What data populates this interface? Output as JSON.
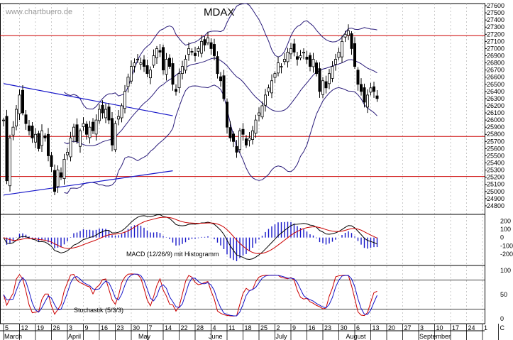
{
  "chart_data": {
    "type": "candlestick",
    "title": "MDAX",
    "watermark": "www.chartbuero.de",
    "price_axis": {
      "ticks": [
        24800,
        24900,
        25000,
        25100,
        25200,
        25300,
        25400,
        25500,
        25600,
        25700,
        25800,
        25900,
        26000,
        26100,
        26200,
        26300,
        26400,
        26500,
        26600,
        26700,
        26800,
        26900,
        27000,
        27100,
        27200,
        27300,
        27400,
        27500,
        27600
      ],
      "range": [
        24700,
        27630
      ]
    },
    "horizontal_levels": [
      27180,
      25770,
      25210
    ],
    "trendlines": [
      {
        "name": "falling",
        "from": {
          "day": 0,
          "price": 26510
        },
        "to": {
          "day": 53,
          "price": 26060
        }
      },
      {
        "name": "rising",
        "from": {
          "day": 0,
          "price": 24950
        },
        "to": {
          "day": 53,
          "price": 25290
        }
      }
    ],
    "macd": {
      "label": "MACD (12/26/9) mit Histogramm",
      "ticks": [
        200,
        100,
        0,
        -100,
        -200
      ],
      "range": [
        -320,
        280
      ]
    },
    "stochastic": {
      "label": "Stochastik (5/3/3)",
      "ticks": [
        100,
        50,
        0
      ],
      "levels": [
        80,
        20
      ],
      "range": [
        -10,
        110
      ]
    },
    "x_axis": {
      "day_labels": [
        {
          "day": 0,
          "label": "5"
        },
        {
          "day": 5,
          "label": "12"
        },
        {
          "day": 10,
          "label": "19"
        },
        {
          "day": 15,
          "label": "26"
        },
        {
          "day": 20,
          "label": "3"
        },
        {
          "day": 25,
          "label": "9"
        },
        {
          "day": 30,
          "label": "16"
        },
        {
          "day": 35,
          "label": "23"
        },
        {
          "day": 40,
          "label": "30"
        },
        {
          "day": 45,
          "label": "7"
        },
        {
          "day": 50,
          "label": "14"
        },
        {
          "day": 55,
          "label": "22"
        },
        {
          "day": 60,
          "label": "28"
        },
        {
          "day": 65,
          "label": "4"
        },
        {
          "day": 70,
          "label": "11"
        },
        {
          "day": 75,
          "label": "18"
        },
        {
          "day": 80,
          "label": "25"
        },
        {
          "day": 85,
          "label": "2"
        },
        {
          "day": 90,
          "label": "9"
        },
        {
          "day": 95,
          "label": "16"
        },
        {
          "day": 100,
          "label": "23"
        },
        {
          "day": 105,
          "label": "30"
        },
        {
          "day": 110,
          "label": "6"
        },
        {
          "day": 115,
          "label": "13"
        },
        {
          "day": 120,
          "label": "20"
        },
        {
          "day": 125,
          "label": "27"
        },
        {
          "day": 130,
          "label": "3"
        },
        {
          "day": 135,
          "label": "10"
        },
        {
          "day": 140,
          "label": "17"
        },
        {
          "day": 145,
          "label": "24"
        },
        {
          "day": 150,
          "label": "1"
        },
        {
          "day": 155,
          "label": "C"
        }
      ],
      "months": [
        {
          "day": 0,
          "label": "March"
        },
        {
          "day": 20,
          "label": "April"
        },
        {
          "day": 42,
          "label": "May"
        },
        {
          "day": 64,
          "label": "June"
        },
        {
          "day": 85,
          "label": "July"
        },
        {
          "day": 107,
          "label": "August"
        },
        {
          "day": 130,
          "label": "September"
        }
      ]
    },
    "close_anchors": [
      [
        0,
        26000
      ],
      [
        1,
        25150
      ],
      [
        2,
        25750
      ],
      [
        3,
        25900
      ],
      [
        4,
        26150
      ],
      [
        5,
        26350
      ],
      [
        6,
        26100
      ],
      [
        7,
        25950
      ],
      [
        8,
        25850
      ],
      [
        9,
        25750
      ],
      [
        10,
        25800
      ],
      [
        11,
        25600
      ],
      [
        12,
        25850
      ],
      [
        13,
        25750
      ],
      [
        14,
        25500
      ],
      [
        15,
        25350
      ],
      [
        16,
        25000
      ],
      [
        17,
        25300
      ],
      [
        18,
        25200
      ],
      [
        19,
        25450
      ],
      [
        20,
        25550
      ],
      [
        21,
        25750
      ],
      [
        22,
        25900
      ],
      [
        23,
        25700
      ],
      [
        24,
        25850
      ],
      [
        25,
        25950
      ],
      [
        26,
        25800
      ],
      [
        27,
        25900
      ],
      [
        28,
        25850
      ],
      [
        29,
        26000
      ],
      [
        30,
        26150
      ],
      [
        31,
        26100
      ],
      [
        32,
        26150
      ],
      [
        33,
        26000
      ],
      [
        34,
        25650
      ],
      [
        35,
        25950
      ],
      [
        36,
        26050
      ],
      [
        37,
        26200
      ],
      [
        38,
        26400
      ],
      [
        39,
        26600
      ],
      [
        40,
        26750
      ],
      [
        41,
        26800
      ],
      [
        42,
        26850
      ],
      [
        43,
        26800
      ],
      [
        44,
        26750
      ],
      [
        45,
        26650
      ],
      [
        46,
        26700
      ],
      [
        47,
        26900
      ],
      [
        48,
        27000
      ],
      [
        49,
        26950
      ],
      [
        50,
        26700
      ],
      [
        51,
        26850
      ],
      [
        52,
        26750
      ],
      [
        53,
        26500
      ],
      [
        54,
        26400
      ],
      [
        55,
        26650
      ],
      [
        56,
        26750
      ],
      [
        57,
        26850
      ],
      [
        58,
        27000
      ],
      [
        59,
        26950
      ],
      [
        60,
        26900
      ],
      [
        61,
        27000
      ],
      [
        62,
        27100
      ],
      [
        63,
        27050
      ],
      [
        64,
        27150
      ],
      [
        65,
        27000
      ],
      [
        66,
        26900
      ],
      [
        67,
        26650
      ],
      [
        68,
        26550
      ],
      [
        69,
        26300
      ],
      [
        70,
        25900
      ],
      [
        71,
        25750
      ],
      [
        72,
        25700
      ],
      [
        73,
        25550
      ],
      [
        74,
        25850
      ],
      [
        75,
        25800
      ],
      [
        76,
        25650
      ],
      [
        77,
        25750
      ],
      [
        78,
        25850
      ],
      [
        79,
        26000
      ],
      [
        80,
        26100
      ],
      [
        81,
        26200
      ],
      [
        82,
        26350
      ],
      [
        83,
        26450
      ],
      [
        84,
        26550
      ],
      [
        85,
        26650
      ],
      [
        86,
        26800
      ],
      [
        87,
        26750
      ],
      [
        88,
        26850
      ],
      [
        89,
        26950
      ],
      [
        90,
        27000
      ],
      [
        91,
        26950
      ],
      [
        92,
        26850
      ],
      [
        93,
        26900
      ],
      [
        94,
        26950
      ],
      [
        95,
        26850
      ],
      [
        96,
        26750
      ],
      [
        97,
        26850
      ],
      [
        98,
        26650
      ],
      [
        99,
        26400
      ],
      [
        100,
        26550
      ],
      [
        101,
        26450
      ],
      [
        102,
        26650
      ],
      [
        103,
        26750
      ],
      [
        104,
        26850
      ],
      [
        105,
        26950
      ],
      [
        106,
        27100
      ],
      [
        107,
        27200
      ],
      [
        108,
        27250
      ],
      [
        109,
        27000
      ],
      [
        110,
        26750
      ],
      [
        111,
        26500
      ],
      [
        112,
        26400
      ],
      [
        113,
        26250
      ],
      [
        114,
        26350
      ],
      [
        115,
        26450
      ],
      [
        116,
        26400
      ],
      [
        117,
        26300
      ]
    ]
  }
}
